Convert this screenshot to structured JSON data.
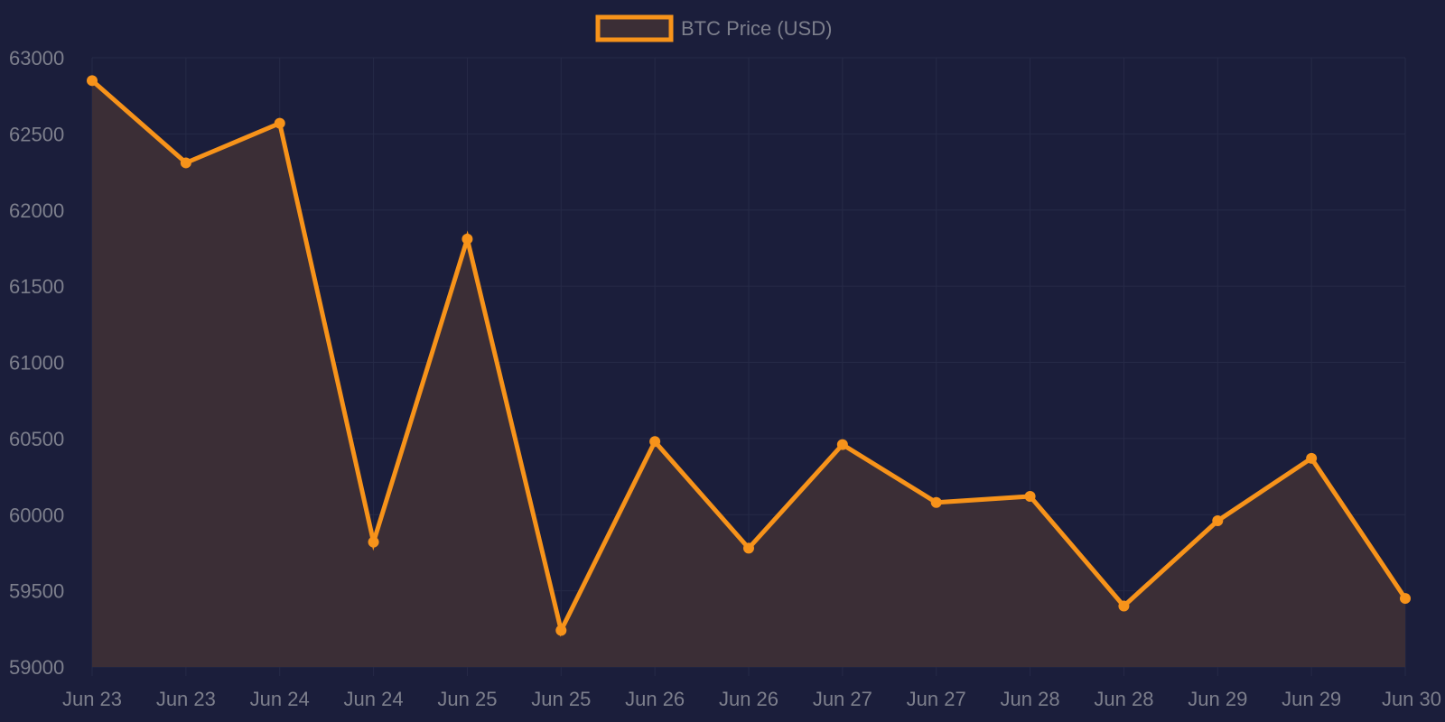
{
  "chart_data": {
    "type": "area",
    "title": "",
    "xlabel": "",
    "ylabel": "",
    "categories": [
      "Jun 23",
      "Jun 23",
      "Jun 24",
      "Jun 24",
      "Jun 25",
      "Jun 25",
      "Jun 26",
      "Jun 26",
      "Jun 27",
      "Jun 27",
      "Jun 28",
      "Jun 28",
      "Jun 29",
      "Jun 29",
      "Jun 30"
    ],
    "series": [
      {
        "name": "BTC Price (USD)",
        "values": [
          62850,
          62310,
          62570,
          59820,
          61810,
          59240,
          60480,
          59780,
          60460,
          60080,
          60120,
          59400,
          59960,
          60370,
          59450
        ]
      }
    ],
    "ylim": [
      59000,
      63000
    ],
    "yticks": [
      59000,
      59500,
      60000,
      60500,
      61000,
      61500,
      62000,
      62500,
      63000
    ],
    "grid": true,
    "legend_position": "top-center",
    "colors": {
      "background": "#1b1e3b",
      "line": "#f7931a",
      "fill": "#3b2e36",
      "grid": "#262a47",
      "text": "#7d7f8c"
    }
  }
}
